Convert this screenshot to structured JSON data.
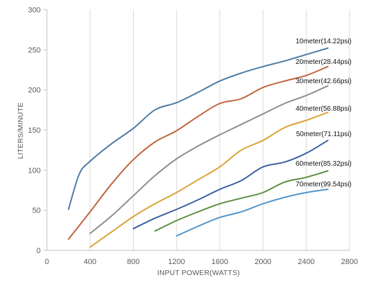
{
  "chart_data": {
    "type": "line",
    "title": "",
    "xlabel": "INPUT POWER(WATTS)",
    "ylabel": "LITERS/MINUTE",
    "xlim": [
      0,
      2800
    ],
    "ylim": [
      0,
      300
    ],
    "x_ticks": [
      "0",
      "400",
      "800",
      "1200",
      "1600",
      "2000",
      "2400",
      "2800"
    ],
    "y_ticks": [
      "0",
      "50",
      "100",
      "150",
      "200",
      "250",
      "300"
    ],
    "grid": "vertical",
    "legend": "none",
    "series": [
      {
        "name": "10meter(14.22psi)",
        "color": "#4a7ba7",
        "points": [
          [
            200,
            51
          ],
          [
            300,
            95
          ],
          [
            400,
            111
          ],
          [
            600,
            133
          ],
          [
            800,
            152
          ],
          [
            1000,
            175
          ],
          [
            1200,
            184
          ],
          [
            1400,
            197
          ],
          [
            1600,
            211
          ],
          [
            1800,
            221
          ],
          [
            2000,
            229
          ],
          [
            2200,
            236
          ],
          [
            2400,
            244
          ],
          [
            2600,
            252
          ]
        ]
      },
      {
        "name": "20meter(28.44psi)",
        "color": "#c0623a",
        "points": [
          [
            200,
            14
          ],
          [
            400,
            48
          ],
          [
            600,
            83
          ],
          [
            800,
            113
          ],
          [
            1000,
            135
          ],
          [
            1200,
            149
          ],
          [
            1400,
            167
          ],
          [
            1600,
            183
          ],
          [
            1800,
            189
          ],
          [
            2000,
            203
          ],
          [
            2200,
            211
          ],
          [
            2400,
            218
          ],
          [
            2600,
            229
          ]
        ]
      },
      {
        "name": "30meter(42.66psi)",
        "color": "#8c8c8c",
        "points": [
          [
            400,
            21
          ],
          [
            600,
            43
          ],
          [
            800,
            68
          ],
          [
            1000,
            93
          ],
          [
            1200,
            114
          ],
          [
            1400,
            130
          ],
          [
            1600,
            144
          ],
          [
            1800,
            157
          ],
          [
            2000,
            170
          ],
          [
            2200,
            183
          ],
          [
            2400,
            193
          ],
          [
            2600,
            205
          ]
        ]
      },
      {
        "name": "40meter(56.88psi)",
        "color": "#d9a232",
        "points": [
          [
            400,
            4
          ],
          [
            600,
            23
          ],
          [
            800,
            42
          ],
          [
            1000,
            58
          ],
          [
            1200,
            72
          ],
          [
            1400,
            88
          ],
          [
            1600,
            104
          ],
          [
            1800,
            125
          ],
          [
            2000,
            137
          ],
          [
            2200,
            153
          ],
          [
            2400,
            162
          ],
          [
            2600,
            172
          ]
        ]
      },
      {
        "name": "50meter(71.11psi)",
        "color": "#3a5fa0",
        "points": [
          [
            800,
            27
          ],
          [
            1000,
            40
          ],
          [
            1200,
            51
          ],
          [
            1400,
            63
          ],
          [
            1600,
            76
          ],
          [
            1800,
            87
          ],
          [
            2000,
            104
          ],
          [
            2200,
            110
          ],
          [
            2400,
            121
          ],
          [
            2600,
            137
          ]
        ]
      },
      {
        "name": "60meter(85.32psi)",
        "color": "#5d8c3c",
        "points": [
          [
            1000,
            24
          ],
          [
            1200,
            37
          ],
          [
            1400,
            48
          ],
          [
            1600,
            58
          ],
          [
            1800,
            65
          ],
          [
            2000,
            72
          ],
          [
            2200,
            85
          ],
          [
            2400,
            91
          ],
          [
            2600,
            99
          ]
        ]
      },
      {
        "name": "70meter(99.54psi)",
        "color": "#4f95cc",
        "points": [
          [
            1200,
            18
          ],
          [
            1400,
            30
          ],
          [
            1600,
            41
          ],
          [
            1800,
            48
          ],
          [
            2000,
            58
          ],
          [
            2200,
            66
          ],
          [
            2400,
            72
          ],
          [
            2600,
            76
          ]
        ]
      }
    ]
  }
}
